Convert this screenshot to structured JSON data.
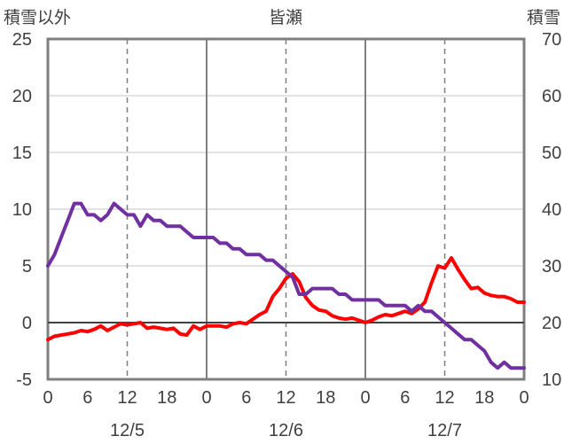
{
  "chart_data": {
    "type": "line",
    "title": "皆瀬",
    "left_axis_title": "積雪以外",
    "right_axis_title": "積雪",
    "y_left": {
      "min": -5,
      "max": 25,
      "ticks": [
        -5,
        0,
        5,
        10,
        15,
        20,
        25
      ]
    },
    "y_right": {
      "min": 10,
      "max": 70,
      "ticks": [
        10,
        20,
        30,
        40,
        50,
        60,
        70
      ]
    },
    "x": {
      "min": 0,
      "max": 72,
      "hour_ticks": [
        0,
        6,
        12,
        18,
        0,
        6,
        12,
        18,
        0,
        6,
        12,
        18,
        0
      ],
      "day_labels": [
        "12/5",
        "12/6",
        "12/7"
      ],
      "day_label_hours": [
        12,
        36,
        60
      ],
      "solid_grid_hours": [
        24,
        48
      ],
      "dashed_grid_hours": [
        12,
        36,
        60
      ]
    },
    "grid": true,
    "series": [
      {
        "axis": "left",
        "color": "#ff0000",
        "x": [
          0,
          1,
          2,
          3,
          4,
          5,
          6,
          7,
          8,
          9,
          10,
          11,
          12,
          13,
          14,
          15,
          16,
          17,
          18,
          19,
          20,
          21,
          22,
          23,
          24,
          25,
          26,
          27,
          28,
          29,
          30,
          31,
          32,
          33,
          34,
          35,
          36,
          37,
          38,
          39,
          40,
          41,
          42,
          43,
          44,
          45,
          46,
          47,
          48,
          49,
          50,
          51,
          52,
          53,
          54,
          55,
          56,
          57,
          58,
          59,
          60,
          61,
          62,
          63,
          64,
          65,
          66,
          67,
          68,
          69,
          70,
          71,
          72
        ],
        "values": [
          -1.5,
          -1.2,
          -1.1,
          -1.0,
          -0.9,
          -0.7,
          -0.8,
          -0.6,
          -0.3,
          -0.7,
          -0.4,
          -0.1,
          -0.2,
          -0.1,
          0.0,
          -0.5,
          -0.4,
          -0.5,
          -0.6,
          -0.5,
          -1.0,
          -1.1,
          -0.3,
          -0.6,
          -0.3,
          -0.3,
          -0.3,
          -0.4,
          -0.1,
          0.0,
          -0.1,
          0.3,
          0.7,
          1.0,
          2.3,
          3.0,
          3.9,
          4.3,
          3.6,
          2.2,
          1.5,
          1.1,
          1.0,
          0.6,
          0.4,
          0.3,
          0.4,
          0.2,
          0.0,
          0.2,
          0.5,
          0.7,
          0.6,
          0.8,
          1.0,
          0.8,
          1.2,
          1.8,
          3.5,
          5.0,
          4.8,
          5.7,
          4.7,
          3.8,
          3.0,
          3.1,
          2.6,
          2.4,
          2.3,
          2.3,
          2.1,
          1.8,
          1.8
        ]
      },
      {
        "axis": "right",
        "color": "#7030a0",
        "x": [
          0,
          1,
          2,
          3,
          4,
          5,
          6,
          7,
          8,
          9,
          10,
          11,
          12,
          13,
          14,
          15,
          16,
          17,
          18,
          19,
          20,
          21,
          22,
          23,
          24,
          25,
          26,
          27,
          28,
          29,
          30,
          31,
          32,
          33,
          34,
          35,
          36,
          37,
          38,
          39,
          40,
          41,
          42,
          43,
          44,
          45,
          46,
          47,
          48,
          49,
          50,
          51,
          52,
          53,
          54,
          55,
          56,
          57,
          58,
          59,
          60,
          61,
          62,
          63,
          64,
          65,
          66,
          67,
          68,
          69,
          70,
          71,
          72
        ],
        "values": [
          30,
          32,
          35,
          38,
          41,
          41,
          39,
          39,
          38,
          39,
          41,
          40,
          39,
          39,
          37,
          39,
          38,
          38,
          37,
          37,
          37,
          36,
          35,
          35,
          35,
          35,
          34,
          34,
          33,
          33,
          32,
          32,
          32,
          31,
          31,
          30,
          29,
          28,
          25,
          25,
          26,
          26,
          26,
          26,
          25,
          25,
          24,
          24,
          24,
          24,
          24,
          23,
          23,
          23,
          23,
          22,
          23,
          22,
          22,
          21,
          20,
          19,
          18,
          17,
          17,
          16,
          15,
          13,
          12,
          13,
          12,
          12,
          12
        ]
      }
    ]
  }
}
